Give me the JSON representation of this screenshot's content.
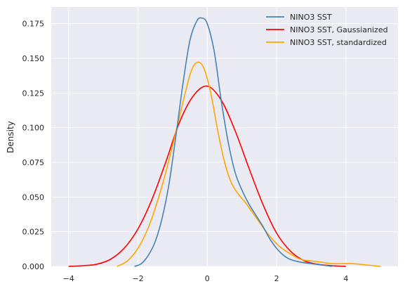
{
  "chart_data": {
    "type": "line",
    "title": "",
    "xlabel": "",
    "ylabel": "Density",
    "xlim": [
      -4.5,
      5.5
    ],
    "ylim": [
      0,
      0.187
    ],
    "xticks": [
      -4,
      -2,
      0,
      2,
      4
    ],
    "xtick_labels": [
      "−4",
      "−2",
      "0",
      "2",
      "4"
    ],
    "yticks": [
      0,
      0.025,
      0.05,
      0.075,
      0.1,
      0.125,
      0.15,
      0.175
    ],
    "ytick_labels": [
      "0.000",
      "0.025",
      "0.050",
      "0.075",
      "0.100",
      "0.125",
      "0.150",
      "0.175"
    ],
    "grid": true,
    "legend_position": "top-right",
    "series": [
      {
        "name": "NINO3 SST",
        "color": "#4682b4",
        "x": [
          -2.1,
          -1.9,
          -1.7,
          -1.5,
          -1.3,
          -1.1,
          -0.9,
          -0.7,
          -0.5,
          -0.3,
          -0.15,
          0.0,
          0.2,
          0.4,
          0.6,
          0.8,
          1.0,
          1.2,
          1.4,
          1.6,
          1.8,
          2.0,
          2.2,
          2.4,
          2.7,
          3.0,
          3.3,
          3.6
        ],
        "y": [
          0.0,
          0.002,
          0.008,
          0.018,
          0.035,
          0.06,
          0.095,
          0.132,
          0.163,
          0.177,
          0.179,
          0.175,
          0.155,
          0.12,
          0.09,
          0.068,
          0.055,
          0.045,
          0.037,
          0.029,
          0.02,
          0.013,
          0.008,
          0.005,
          0.003,
          0.002,
          0.001,
          0.0
        ]
      },
      {
        "name": "NINO3 SST, Gaussianized",
        "color": "#ff0000",
        "x": [
          -4.0,
          -3.6,
          -3.2,
          -2.8,
          -2.4,
          -2.0,
          -1.6,
          -1.2,
          -0.8,
          -0.4,
          0.0,
          0.4,
          0.8,
          1.2,
          1.6,
          2.0,
          2.4,
          2.8,
          3.2,
          3.6,
          4.0
        ],
        "y": [
          0.0,
          0.0005,
          0.0015,
          0.005,
          0.013,
          0.027,
          0.048,
          0.075,
          0.104,
          0.123,
          0.13,
          0.12,
          0.098,
          0.071,
          0.045,
          0.024,
          0.011,
          0.004,
          0.0015,
          0.0005,
          0.0
        ]
      },
      {
        "name": "NINO3 SST, standardized",
        "color": "#ffa500",
        "x": [
          -2.6,
          -2.3,
          -2.0,
          -1.7,
          -1.4,
          -1.1,
          -0.8,
          -0.5,
          -0.3,
          -0.1,
          0.1,
          0.3,
          0.5,
          0.7,
          0.9,
          1.1,
          1.3,
          1.5,
          1.7,
          1.9,
          2.1,
          2.4,
          2.7,
          3.0,
          3.3,
          3.6,
          3.9,
          4.2,
          4.6,
          5.0
        ],
        "y": [
          0.0,
          0.004,
          0.013,
          0.028,
          0.05,
          0.077,
          0.108,
          0.138,
          0.147,
          0.143,
          0.125,
          0.098,
          0.075,
          0.06,
          0.052,
          0.046,
          0.039,
          0.032,
          0.025,
          0.019,
          0.014,
          0.009,
          0.005,
          0.004,
          0.003,
          0.002,
          0.002,
          0.002,
          0.001,
          0.0
        ]
      }
    ]
  }
}
